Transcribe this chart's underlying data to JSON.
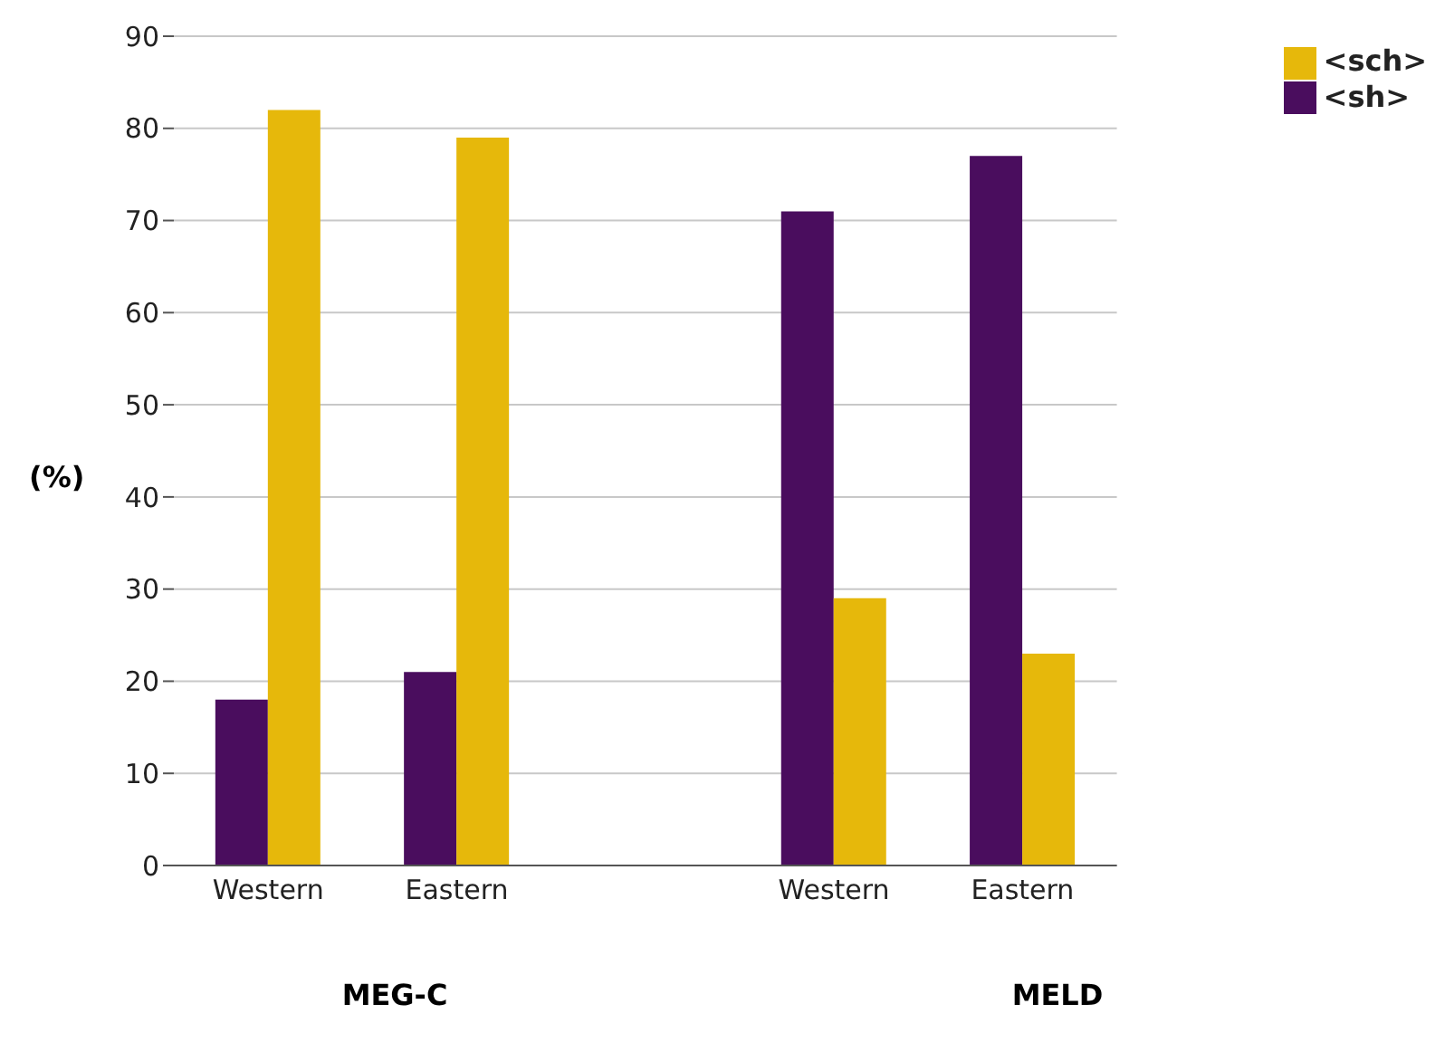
{
  "chart_data": {
    "type": "bar",
    "ylabel": "(%)",
    "categories": [
      "Western",
      "Eastern",
      null,
      "Western",
      "Eastern"
    ],
    "series": [
      {
        "name": "<sh>",
        "color": "#4a0d5e",
        "values": [
          18,
          21,
          null,
          71,
          77
        ]
      },
      {
        "name": "<sch>",
        "color": "#e6b80b",
        "values": [
          82,
          79,
          null,
          29,
          23
        ]
      }
    ],
    "annotations": [
      "MEG-C",
      "MELD"
    ],
    "ylim": [
      0,
      90
    ],
    "yticks": [
      0,
      10,
      20,
      30,
      40,
      50,
      60,
      70,
      80,
      90
    ],
    "grid": "y",
    "legend": "top right"
  }
}
